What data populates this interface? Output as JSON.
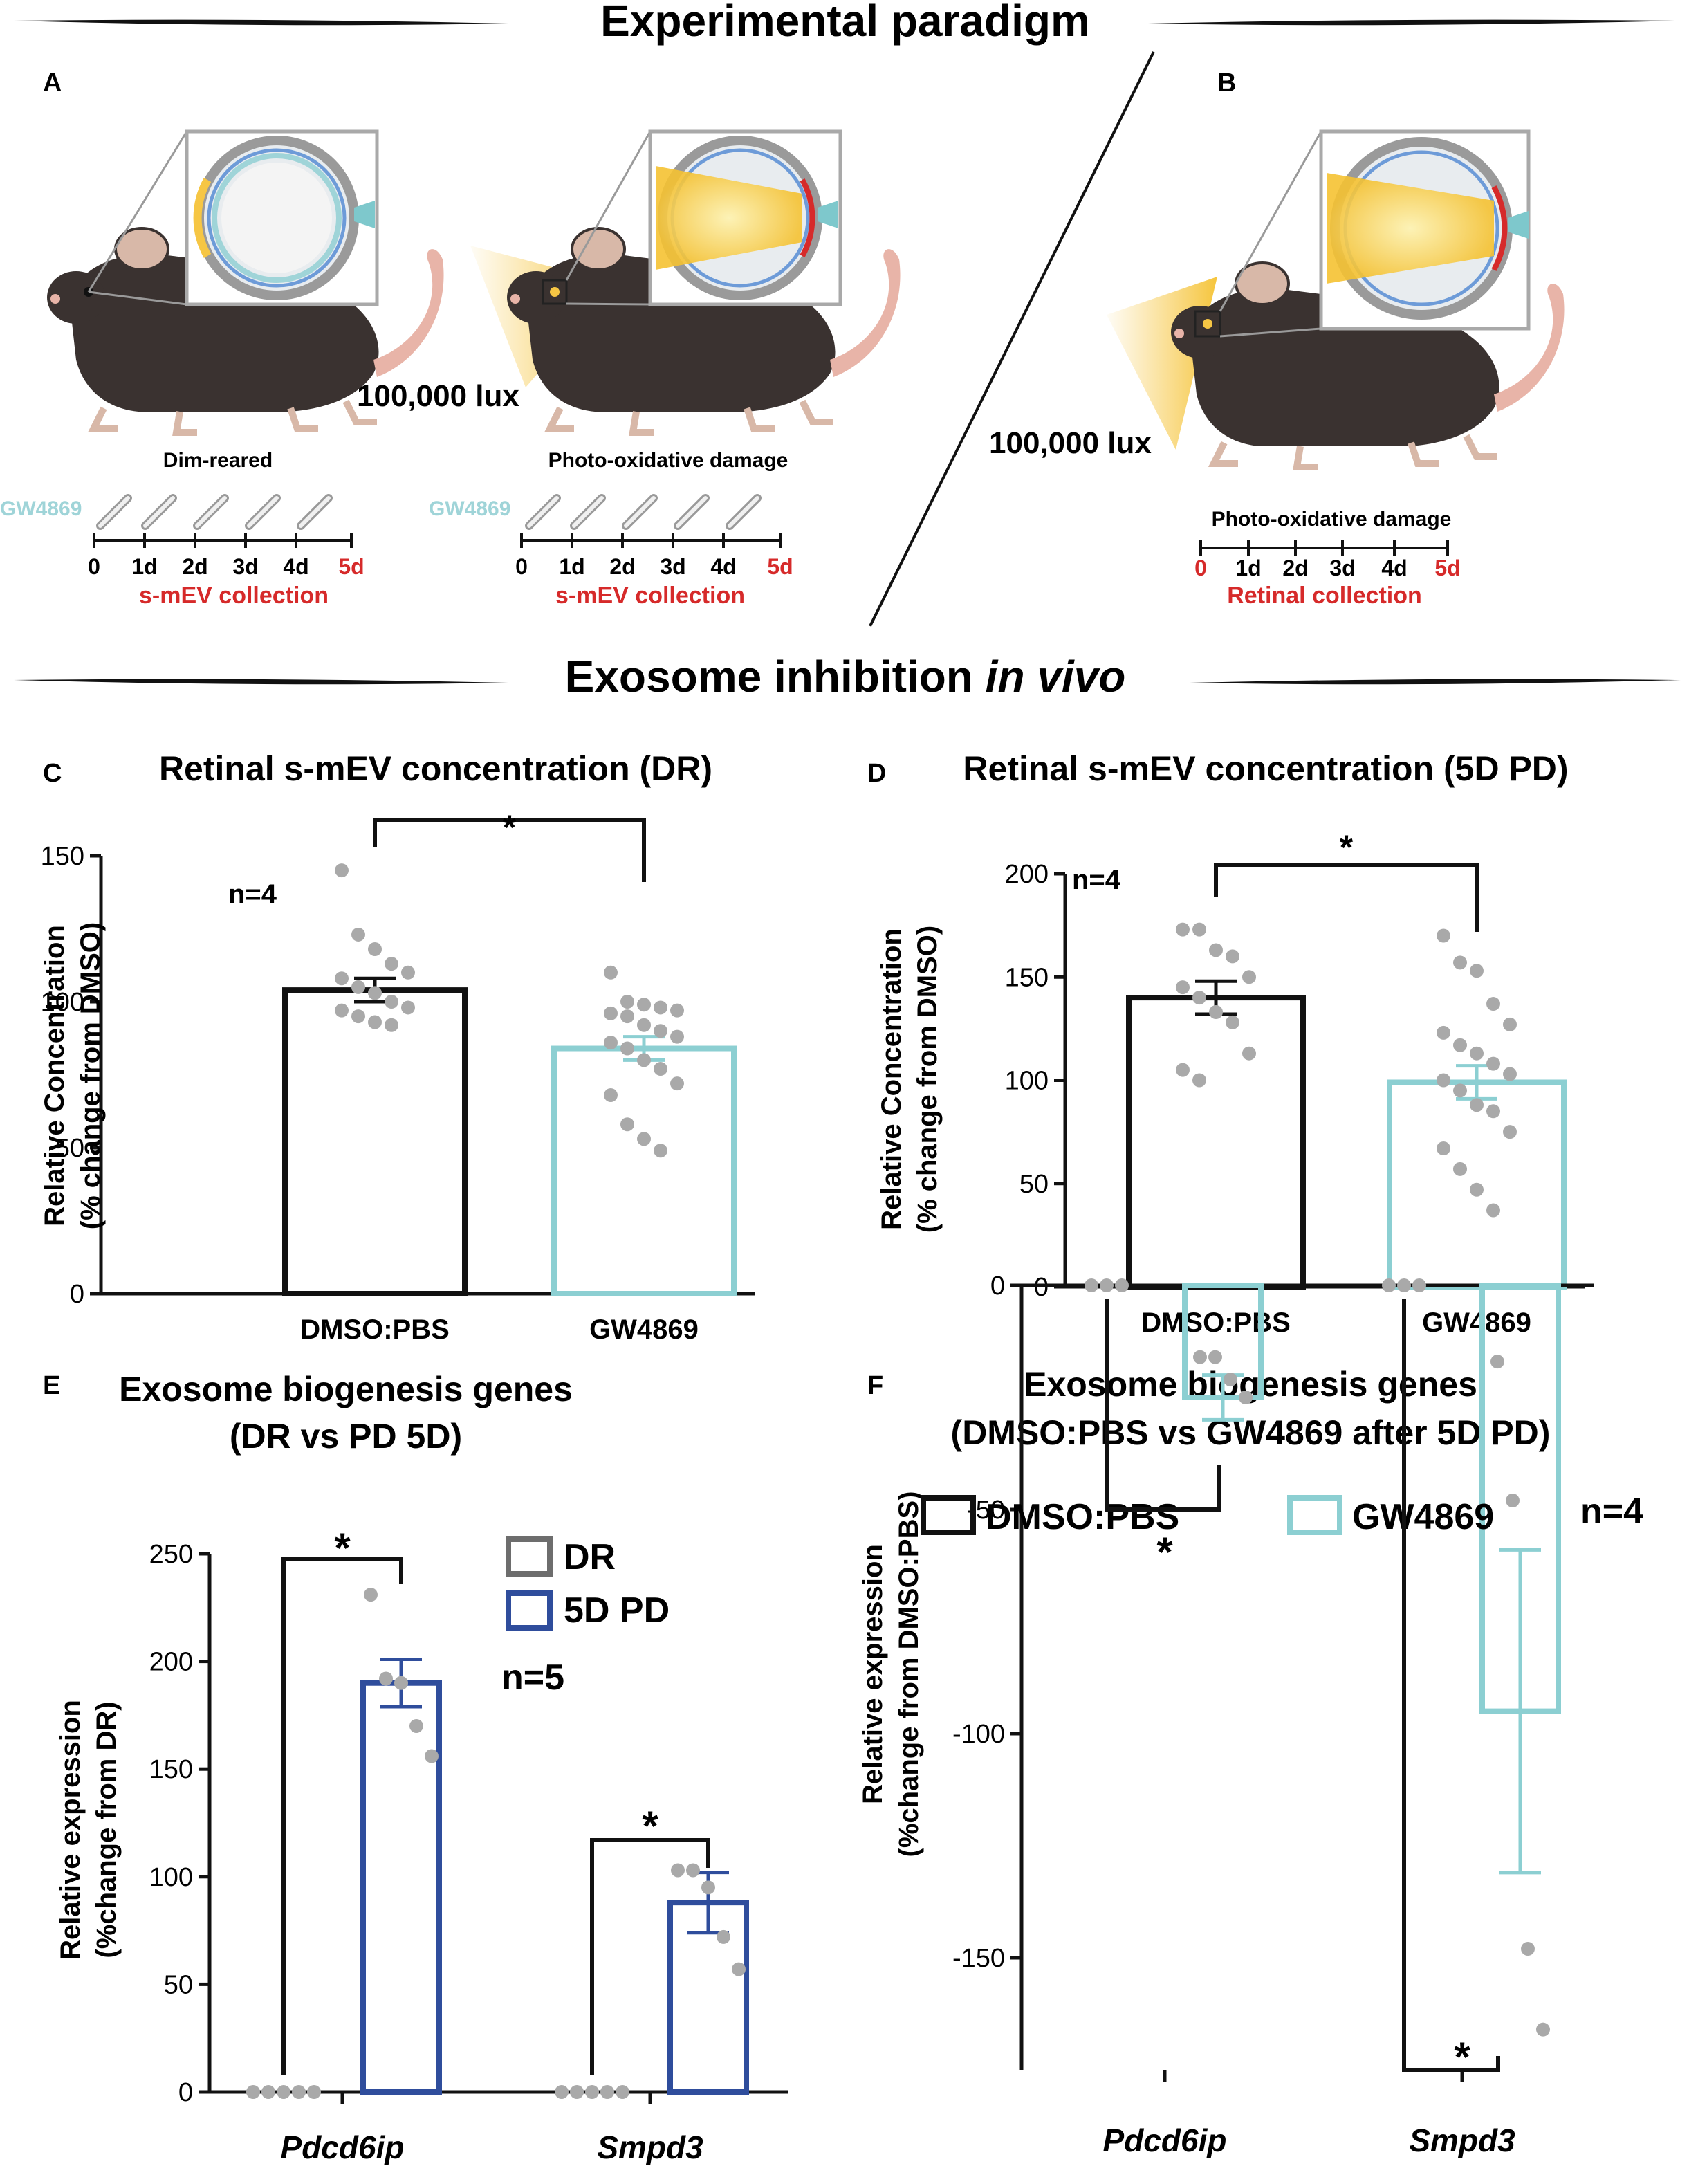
{
  "headers": {
    "paradigm": "Experimental paradigm",
    "inhibition_main": "Exosome inhibition",
    "inhibition_italic": "in vivo"
  },
  "panel_letters": {
    "a": "A",
    "b": "B",
    "c": "C",
    "d": "D",
    "e": "E",
    "f": "F"
  },
  "schematic": {
    "lux_a": "100,000 lux",
    "lux_b": "100,000 lux",
    "drug": "GW4869",
    "dim_reared": "Dim-reared",
    "photo_damage": "Photo-oxidative damage",
    "days": [
      "0",
      "1d",
      "2d",
      "3d",
      "4d",
      "5d"
    ],
    "collection_sm": "s-mEV collection",
    "collection_ret": "Retinal collection",
    "colors": {
      "mouse": "#3a3230",
      "light": "#f6c644",
      "red": "#d62a2a",
      "teal": "#9fd4d8",
      "eye_gray": "#a9a9a9"
    }
  },
  "chart_data": [
    {
      "id": "C",
      "type": "bar",
      "title": "Retinal s-mEV concentration (DR)",
      "ylabel": [
        "Relative Concentration",
        "(% change from DMSO)"
      ],
      "categories": [
        "DMSO:PBS",
        "GW4869"
      ],
      "values": [
        104,
        84
      ],
      "sem": [
        4,
        4
      ],
      "points": [
        [
          145,
          123,
          118,
          113,
          110,
          108,
          105,
          103,
          100,
          98,
          97,
          95,
          93,
          92
        ],
        [
          110,
          100,
          99,
          98,
          97,
          96,
          95,
          92,
          90,
          88,
          86,
          84,
          80,
          77,
          72,
          68,
          58,
          53,
          49
        ]
      ],
      "ylim": [
        0,
        150
      ],
      "yticks": [
        0,
        50,
        100,
        150
      ],
      "n_label": "n=4",
      "sig": "*",
      "colors": [
        "#111111",
        "#8ccfd2"
      ]
    },
    {
      "id": "D",
      "type": "bar",
      "title": "Retinal s-mEV concentration (5D PD)",
      "ylabel": [
        "Relative Concentration",
        "(% change from DMSO)"
      ],
      "categories": [
        "DMSO:PBS",
        "GW4869"
      ],
      "values": [
        140,
        99
      ],
      "sem": [
        8,
        8
      ],
      "points": [
        [
          173,
          173,
          163,
          160,
          150,
          145,
          140,
          133,
          128,
          113,
          105,
          100
        ],
        [
          170,
          157,
          153,
          137,
          127,
          123,
          117,
          113,
          108,
          103,
          100,
          95,
          88,
          85,
          75,
          67,
          57,
          47,
          37
        ]
      ],
      "ylim": [
        0,
        200
      ],
      "yticks": [
        0,
        50,
        100,
        150,
        200
      ],
      "n_label": "n=4",
      "sig": "*",
      "colors": [
        "#111111",
        "#8ccfd2"
      ]
    },
    {
      "id": "E",
      "type": "bar",
      "title": [
        "Exosome biogenesis genes",
        "(DR vs PD 5D)"
      ],
      "ylabel": [
        "Relative expression",
        "(%change from DR)"
      ],
      "categories": [
        "Pdcd6ip",
        "Smpd3"
      ],
      "series": [
        {
          "name": "DR",
          "values": [
            0,
            0
          ],
          "sem": [
            0,
            0
          ],
          "points": [
            [
              0,
              0,
              0,
              0,
              0
            ],
            [
              0,
              0,
              0,
              0,
              0
            ]
          ]
        },
        {
          "name": "5D PD",
          "values": [
            190,
            88
          ],
          "sem": [
            11,
            14
          ],
          "points": [
            [
              231,
              192,
              190,
              170,
              156
            ],
            [
              103,
              103,
              95,
              72,
              57
            ]
          ]
        }
      ],
      "ylim": [
        0,
        250
      ],
      "yticks": [
        0,
        50,
        100,
        150,
        200,
        250
      ],
      "n_label": "n=5",
      "sig": [
        "*",
        "*"
      ],
      "colors": [
        "#6d6d6d",
        "#2f4d9c"
      ]
    },
    {
      "id": "F",
      "type": "bar",
      "title": [
        "Exosome biogenesis genes",
        "(DMSO:PBS vs GW4869 after 5D PD)"
      ],
      "ylabel": [
        "Relative expression",
        "(%change from DMSO:PBS)"
      ],
      "categories": [
        "Pdcd6ip",
        "Smpd3"
      ],
      "series": [
        {
          "name": "DMSO:PBS",
          "values": [
            0,
            0
          ],
          "sem": [
            0,
            0
          ],
          "points": [
            [
              0,
              0,
              0
            ],
            [
              0,
              0,
              0
            ]
          ]
        },
        {
          "name": "GW4869",
          "values": [
            -25,
            -95
          ],
          "sem": [
            5,
            36
          ],
          "points": [
            [
              -16,
              -16,
              -21,
              -25
            ],
            [
              -17,
              -48,
              -148,
              -166
            ]
          ]
        }
      ],
      "ylim": [
        -175,
        0
      ],
      "yticks": [
        0,
        -50,
        -100,
        -150
      ],
      "n_label": "n=4",
      "sig": [
        "*",
        "*"
      ],
      "colors": [
        "#111111",
        "#8ccfd2"
      ]
    }
  ]
}
